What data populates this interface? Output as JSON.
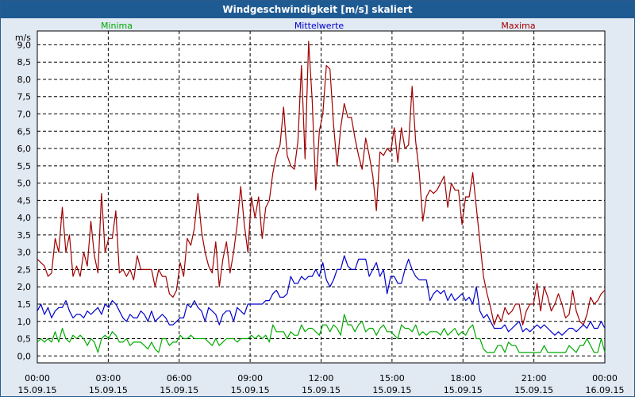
{
  "window": {
    "title": "Windgeschwindigkeit [m/s] skaliert"
  },
  "colors": {
    "min": "#00aa00",
    "mean": "#0000cc",
    "max": "#a00000",
    "grid": "#000000",
    "plot_bg": "#ffffff"
  },
  "chart_data": {
    "type": "line",
    "title": "Windgeschwindigkeit [m/s] skaliert",
    "ylabel": "m/s",
    "xlabel": "",
    "ylim": [
      -0.2,
      9.4
    ],
    "yticks": [
      "0,0",
      "0,5",
      "1,0",
      "1,5",
      "2,0",
      "2,5",
      "3,0",
      "3,5",
      "4,0",
      "4,5",
      "5,0",
      "5,5",
      "6,0",
      "6,5",
      "7,0",
      "7,5",
      "8,0",
      "8,5",
      "9,0"
    ],
    "xlim": [
      0,
      24
    ],
    "xticks": [
      {
        "time": "00:00",
        "date": "15.09.15"
      },
      {
        "time": "03:00",
        "date": "15.09.15"
      },
      {
        "time": "06:00",
        "date": "15.09.15"
      },
      {
        "time": "09:00",
        "date": "15.09.15"
      },
      {
        "time": "12:00",
        "date": "15.09.15"
      },
      {
        "time": "15:00",
        "date": "15.09.15"
      },
      {
        "time": "18:00",
        "date": "15.09.15"
      },
      {
        "time": "21:00",
        "date": "15.09.15"
      },
      {
        "time": "00:00",
        "date": "16.09.15"
      }
    ],
    "legend": [
      "Minima",
      "Mittelwerte",
      "Maxima"
    ],
    "series": [
      {
        "name": "Maxima",
        "color": "#a00000",
        "values": [
          2.8,
          2.7,
          2.6,
          2.3,
          2.4,
          3.4,
          3.0,
          4.3,
          3.0,
          3.5,
          2.3,
          2.6,
          2.3,
          3.0,
          2.6,
          3.9,
          2.9,
          2.4,
          4.7,
          3.0,
          3.4,
          3.4,
          4.2,
          2.4,
          2.5,
          2.3,
          2.5,
          2.2,
          2.9,
          2.5,
          2.5,
          2.5,
          2.5,
          2.0,
          2.5,
          2.3,
          2.3,
          1.8,
          1.7,
          1.9,
          2.7,
          2.3,
          3.4,
          3.2,
          3.7,
          4.7,
          3.6,
          3.0,
          2.6,
          2.4,
          3.3,
          2.0,
          2.8,
          3.3,
          2.4,
          3.0,
          3.8,
          4.9,
          3.8,
          3.0,
          4.6,
          4.0,
          4.6,
          3.4,
          4.3,
          4.5,
          5.3,
          5.8,
          6.1,
          7.2,
          5.8,
          5.5,
          5.4,
          6.2,
          8.4,
          5.7,
          9.1,
          7.4,
          4.8,
          6.5,
          7.0,
          8.4,
          8.3,
          6.7,
          5.5,
          6.6,
          7.3,
          6.9,
          6.9,
          6.3,
          5.8,
          5.4,
          6.3,
          5.8,
          5.2,
          4.2,
          5.9,
          5.8,
          6.0,
          5.9,
          6.6,
          5.6,
          6.6,
          6.0,
          6.1,
          7.8,
          6.2,
          5.3,
          3.9,
          4.6,
          4.8,
          4.7,
          4.8,
          5.0,
          5.2,
          4.3,
          5.0,
          4.8,
          4.8,
          3.8,
          4.6,
          4.6,
          5.3,
          4.3,
          3.3,
          2.3,
          1.8,
          1.4,
          0.9,
          1.2,
          1.0,
          1.4,
          1.2,
          1.3,
          1.5,
          1.5,
          0.9,
          1.3,
          1.5,
          1.5,
          2.1,
          1.3,
          2.0,
          1.7,
          1.3,
          1.5,
          1.8,
          1.5,
          1.1,
          1.2,
          1.9,
          1.3,
          1.0,
          0.9,
          1.2,
          1.7,
          1.5,
          1.6,
          1.8,
          1.9
        ]
      },
      {
        "name": "Mittelwerte",
        "color": "#0000cc",
        "values": [
          1.3,
          1.5,
          1.2,
          1.4,
          1.1,
          1.3,
          1.4,
          1.4,
          1.6,
          1.3,
          1.1,
          1.2,
          1.2,
          1.1,
          1.3,
          1.2,
          1.3,
          1.4,
          1.2,
          1.5,
          1.4,
          1.6,
          1.5,
          1.3,
          1.1,
          1.0,
          1.2,
          1.1,
          1.1,
          1.3,
          1.2,
          1.0,
          1.3,
          1.0,
          1.1,
          1.2,
          1.1,
          0.9,
          0.9,
          1.0,
          1.1,
          1.1,
          1.5,
          1.4,
          1.6,
          1.4,
          1.3,
          1.0,
          1.4,
          1.3,
          1.2,
          0.9,
          1.2,
          1.3,
          1.3,
          1.0,
          1.4,
          1.3,
          1.2,
          1.5,
          1.5,
          1.5,
          1.5,
          1.5,
          1.6,
          1.6,
          1.8,
          1.9,
          1.7,
          1.7,
          1.8,
          2.3,
          2.1,
          2.1,
          2.3,
          2.2,
          2.3,
          2.3,
          2.5,
          2.3,
          2.7,
          2.2,
          2.0,
          2.2,
          2.5,
          2.5,
          2.9,
          2.6,
          2.5,
          2.5,
          2.8,
          2.8,
          2.8,
          2.3,
          2.5,
          2.7,
          2.3,
          2.5,
          1.8,
          2.3,
          2.3,
          2.1,
          2.1,
          2.5,
          2.8,
          2.5,
          2.3,
          2.2,
          2.2,
          2.2,
          1.6,
          1.8,
          1.9,
          1.8,
          1.9,
          1.6,
          1.8,
          1.6,
          1.7,
          1.8,
          1.6,
          1.7,
          1.5,
          2.0,
          1.3,
          1.1,
          1.2,
          1.0,
          0.8,
          0.8,
          0.8,
          0.9,
          0.7,
          0.8,
          0.9,
          1.0,
          0.7,
          0.8,
          0.7,
          0.8,
          0.9,
          0.8,
          0.9,
          0.8,
          0.7,
          0.6,
          0.7,
          0.6,
          0.7,
          0.8,
          0.8,
          0.7,
          0.8,
          0.9,
          0.8,
          1.0,
          0.8,
          0.8,
          1.0,
          0.8
        ]
      },
      {
        "name": "Minima",
        "color": "#00aa00",
        "values": [
          0.4,
          0.5,
          0.4,
          0.5,
          0.4,
          0.7,
          0.4,
          0.8,
          0.5,
          0.4,
          0.6,
          0.5,
          0.6,
          0.5,
          0.3,
          0.5,
          0.4,
          0.1,
          0.5,
          0.6,
          0.5,
          0.7,
          0.6,
          0.4,
          0.4,
          0.5,
          0.3,
          0.4,
          0.4,
          0.4,
          0.3,
          0.2,
          0.4,
          0.2,
          0.1,
          0.5,
          0.5,
          0.3,
          0.4,
          0.4,
          0.6,
          0.5,
          0.5,
          0.6,
          0.5,
          0.5,
          0.5,
          0.5,
          0.4,
          0.3,
          0.5,
          0.3,
          0.4,
          0.5,
          0.5,
          0.5,
          0.4,
          0.5,
          0.5,
          0.5,
          0.6,
          0.5,
          0.6,
          0.5,
          0.6,
          0.4,
          0.9,
          0.7,
          0.7,
          0.7,
          0.5,
          0.7,
          0.6,
          0.6,
          0.9,
          0.7,
          0.8,
          0.8,
          0.7,
          0.6,
          0.9,
          0.9,
          0.7,
          0.9,
          0.8,
          0.6,
          1.2,
          0.9,
          0.9,
          0.7,
          0.9,
          1.0,
          0.7,
          0.8,
          0.8,
          0.6,
          0.8,
          0.9,
          0.7,
          0.7,
          0.6,
          0.5,
          0.9,
          0.8,
          0.8,
          0.7,
          0.9,
          0.6,
          0.7,
          0.6,
          0.7,
          0.7,
          0.7,
          0.6,
          0.8,
          0.6,
          0.7,
          0.8,
          0.6,
          0.7,
          0.6,
          0.8,
          0.9,
          0.5,
          0.5,
          0.2,
          0.1,
          0.1,
          0.1,
          0.3,
          0.3,
          0.1,
          0.4,
          0.3,
          0.3,
          0.1,
          0.1,
          0.1,
          0.1,
          0.1,
          0.1,
          0.1,
          0.3,
          0.1,
          0.1,
          0.1,
          0.1,
          0.1,
          0.1,
          0.3,
          0.2,
          0.1,
          0.3,
          0.3,
          0.5,
          0.3,
          0.1,
          0.1,
          0.5,
          0.1
        ]
      }
    ]
  }
}
